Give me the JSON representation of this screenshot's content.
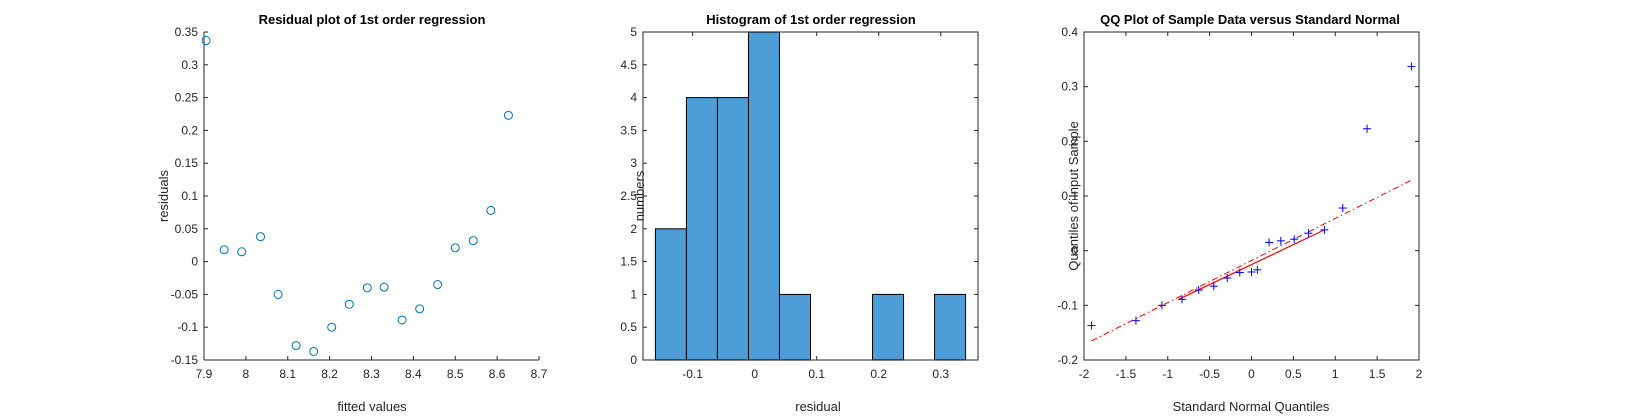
{
  "chart_data": [
    {
      "type": "scatter",
      "title": "Residual plot of 1st order regression",
      "xlabel": "fitted values",
      "ylabel": "residuals",
      "xlim": [
        7.9,
        8.7
      ],
      "ylim": [
        -0.15,
        0.35
      ],
      "xticks": [
        7.9,
        8.0,
        8.1,
        8.2,
        8.3,
        8.4,
        8.5,
        8.6,
        8.7
      ],
      "xtick_labels": [
        "7.9",
        "8",
        "8.1",
        "8.2",
        "8.3",
        "8.4",
        "8.5",
        "8.6",
        "8.7"
      ],
      "yticks": [
        -0.15,
        -0.1,
        -0.05,
        0,
        0.05,
        0.1,
        0.15,
        0.2,
        0.25,
        0.3,
        0.35
      ],
      "ytick_labels": [
        "-0.15",
        "-0.1",
        "-0.05",
        "0",
        "0.05",
        "0.1",
        "0.15",
        "0.2",
        "0.25",
        "0.3",
        "0.35"
      ],
      "marker": "circle",
      "color": "#0072BD",
      "grid": false,
      "points": [
        {
          "x": 7.905,
          "y": 0.337
        },
        {
          "x": 7.948,
          "y": 0.018
        },
        {
          "x": 7.99,
          "y": 0.015
        },
        {
          "x": 8.035,
          "y": 0.038
        },
        {
          "x": 8.077,
          "y": -0.05
        },
        {
          "x": 8.12,
          "y": -0.128
        },
        {
          "x": 8.162,
          "y": -0.137
        },
        {
          "x": 8.205,
          "y": -0.1
        },
        {
          "x": 8.247,
          "y": -0.065
        },
        {
          "x": 8.29,
          "y": -0.04
        },
        {
          "x": 8.33,
          "y": -0.039
        },
        {
          "x": 8.373,
          "y": -0.089
        },
        {
          "x": 8.415,
          "y": -0.072
        },
        {
          "x": 8.458,
          "y": -0.035
        },
        {
          "x": 8.5,
          "y": 0.021
        },
        {
          "x": 8.543,
          "y": 0.032
        },
        {
          "x": 8.585,
          "y": 0.078
        },
        {
          "x": 8.627,
          "y": 0.223
        }
      ]
    },
    {
      "type": "bar",
      "title": "Histogram of 1st order regression",
      "xlabel": "residual",
      "ylabel": "numbers",
      "xlim": [
        -0.18,
        0.36
      ],
      "ylim": [
        0,
        5
      ],
      "xticks": [
        -0.1,
        0,
        0.1,
        0.2,
        0.3
      ],
      "xtick_labels": [
        "-0.1",
        "0",
        "0.1",
        "0.2",
        "0.3"
      ],
      "yticks": [
        0,
        0.5,
        1,
        1.5,
        2,
        2.5,
        3,
        3.5,
        4,
        4.5,
        5
      ],
      "ytick_labels": [
        "0",
        "0.5",
        "1",
        "1.5",
        "2",
        "2.5",
        "3",
        "3.5",
        "4",
        "4.5",
        "5"
      ],
      "bin_edges": [
        -0.16,
        -0.11,
        -0.06,
        -0.01,
        0.04,
        0.09,
        0.14,
        0.19,
        0.24,
        0.29,
        0.34
      ],
      "counts": [
        2,
        4,
        4,
        5,
        1,
        0,
        0,
        1,
        0,
        1
      ],
      "color": "#4D9DD6"
    },
    {
      "type": "scatter",
      "title": "QQ Plot of Sample Data versus Standard Normal",
      "xlabel": "Standard Normal Quantiles",
      "ylabel": "Quantiles of Input Sample",
      "xlim": [
        -2,
        2
      ],
      "ylim": [
        -0.2,
        0.4
      ],
      "xticks": [
        -2,
        -1.5,
        -1,
        -0.5,
        0,
        0.5,
        1,
        1.5,
        2
      ],
      "xtick_labels": [
        "-2",
        "-1.5",
        "-1",
        "-0.5",
        "0",
        "0.5",
        "1",
        "1.5",
        "2"
      ],
      "yticks": [
        -0.2,
        -0.1,
        0,
        0.1,
        0.2,
        0.3,
        0.4
      ],
      "ytick_labels": [
        "-0.2",
        "-0.1",
        "0",
        "0.1",
        "0.2",
        "0.3",
        "0.4"
      ],
      "marker": "plus",
      "color": "#0000FF",
      "line_color": "#FF0000",
      "grid": false,
      "points": [
        {
          "x": -1.91,
          "y": -0.137
        },
        {
          "x": -1.38,
          "y": -0.128
        },
        {
          "x": -1.07,
          "y": -0.1
        },
        {
          "x": -0.83,
          "y": -0.089
        },
        {
          "x": -0.63,
          "y": -0.072
        },
        {
          "x": -0.45,
          "y": -0.065
        },
        {
          "x": -0.29,
          "y": -0.05
        },
        {
          "x": -0.14,
          "y": -0.04
        },
        {
          "x": 0.0,
          "y": -0.039
        },
        {
          "x": 0.07,
          "y": -0.035
        },
        {
          "x": 0.21,
          "y": 0.015
        },
        {
          "x": 0.35,
          "y": 0.018
        },
        {
          "x": 0.51,
          "y": 0.021
        },
        {
          "x": 0.68,
          "y": 0.032
        },
        {
          "x": 0.87,
          "y": 0.038
        },
        {
          "x": 1.09,
          "y": 0.078
        },
        {
          "x": 1.38,
          "y": 0.223
        },
        {
          "x": 1.91,
          "y": 0.337
        }
      ],
      "reference_line": {
        "solid": [
          {
            "x": -0.87,
            "y": -0.089
          },
          {
            "x": 0.87,
            "y": 0.038
          }
        ],
        "dashdot": [
          {
            "x": -1.91,
            "y": -0.165
          },
          {
            "x": 1.91,
            "y": 0.129
          }
        ]
      }
    }
  ]
}
